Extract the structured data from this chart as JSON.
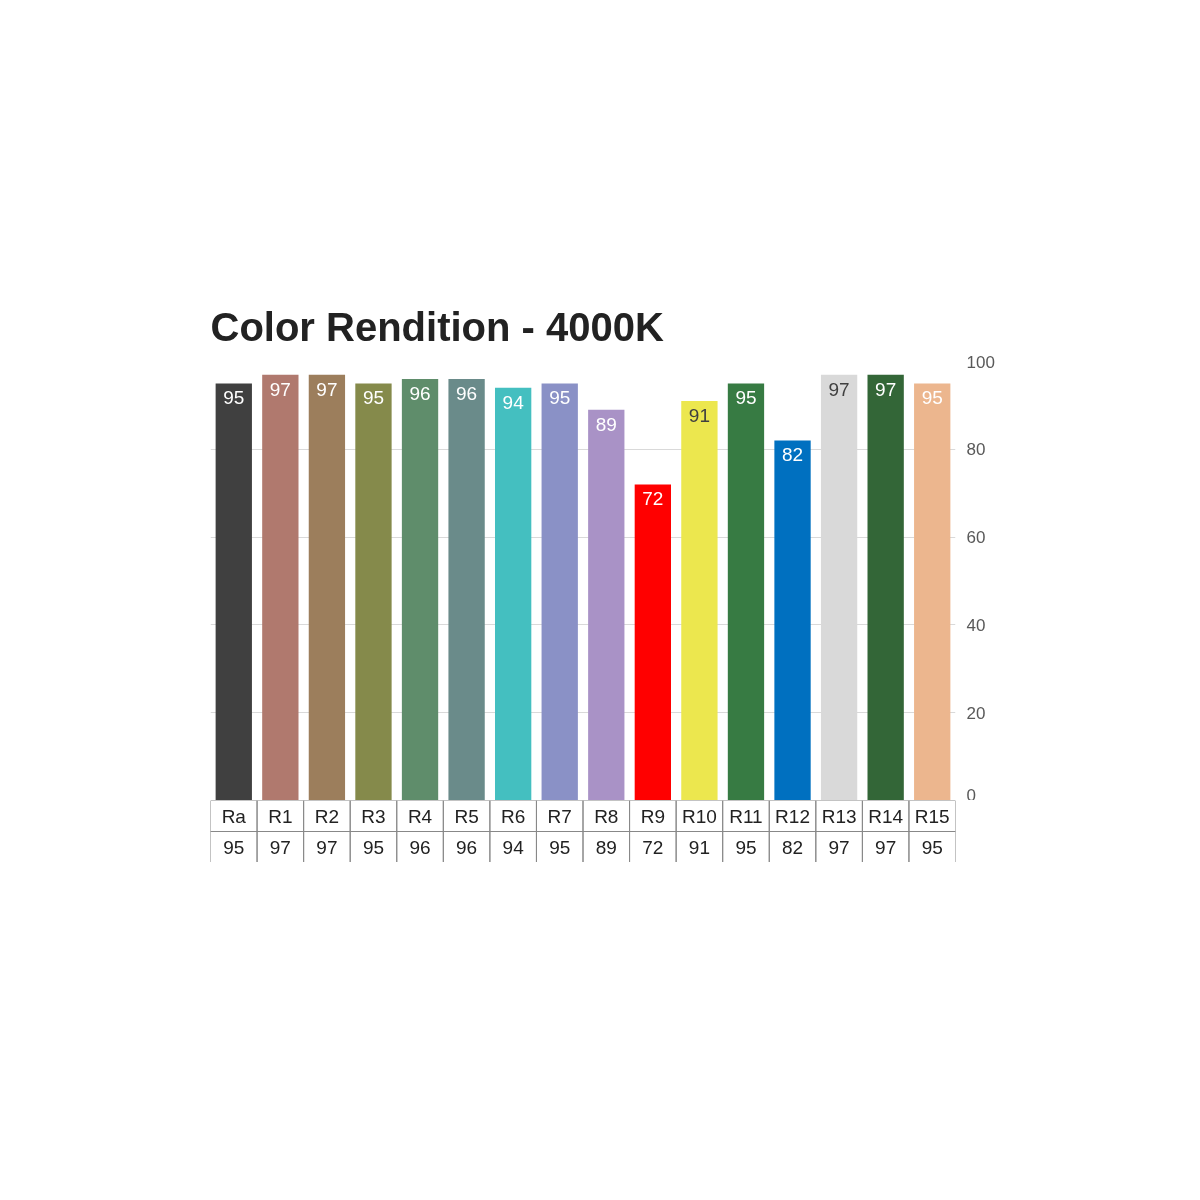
{
  "chart_data": {
    "type": "bar",
    "title": "Color Rendition - 4000K",
    "categories": [
      "Ra",
      "R1",
      "R2",
      "R3",
      "R4",
      "R5",
      "R6",
      "R7",
      "R8",
      "R9",
      "R10",
      "R11",
      "R12",
      "R13",
      "R14",
      "R15"
    ],
    "values": [
      95,
      97,
      97,
      95,
      96,
      96,
      94,
      95,
      89,
      72,
      91,
      95,
      82,
      97,
      97,
      95
    ],
    "colors": [
      "#404040",
      "#b0796e",
      "#9c7e5c",
      "#858a4b",
      "#5f8d6b",
      "#6a8b8a",
      "#44bfc0",
      "#8a91c6",
      "#a992c6",
      "#ff0000",
      "#ece74e",
      "#377b43",
      "#0070c0",
      "#d9d9d9",
      "#336637",
      "#ecb68e"
    ],
    "annotations": [
      {
        "text": "95",
        "x": "Ra",
        "y": 95
      },
      {
        "text": "97",
        "x": "R1",
        "y": 97
      },
      {
        "text": "97",
        "x": "R2",
        "y": 97
      },
      {
        "text": "95",
        "x": "R3",
        "y": 95
      },
      {
        "text": "96",
        "x": "R4",
        "y": 96
      },
      {
        "text": "96",
        "x": "R5",
        "y": 96
      },
      {
        "text": "94",
        "x": "R6",
        "y": 94
      },
      {
        "text": "95",
        "x": "R7",
        "y": 95
      },
      {
        "text": "89",
        "x": "R8",
        "y": 89
      },
      {
        "text": "72",
        "x": "R9",
        "y": 72
      },
      {
        "text": "91",
        "x": "R10",
        "y": 91
      },
      {
        "text": "95",
        "x": "R11",
        "y": 95
      },
      {
        "text": "82",
        "x": "R12",
        "y": 82
      },
      {
        "text": "97",
        "x": "R13",
        "y": 97
      },
      {
        "text": "97",
        "x": "R14",
        "y": 97
      },
      {
        "text": "95",
        "x": "R15",
        "y": 95
      }
    ],
    "ylim": [
      0,
      100
    ],
    "yticks": [
      0,
      20,
      40,
      60,
      80,
      100
    ],
    "grid": "y",
    "data_labels": true
  }
}
